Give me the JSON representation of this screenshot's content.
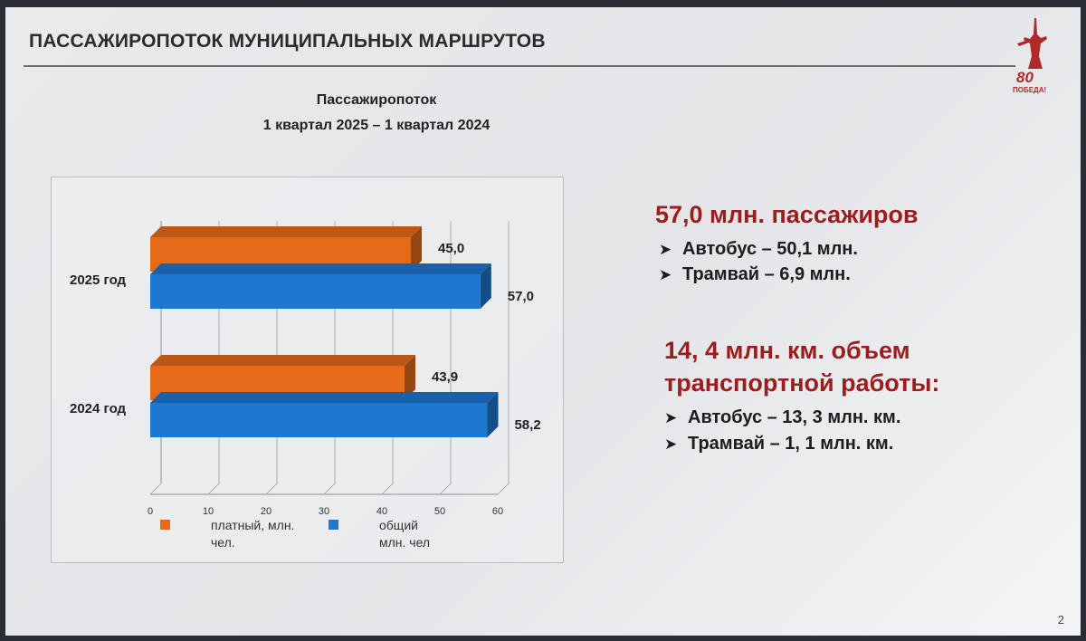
{
  "slide": {
    "title": "ПАССАЖИРОПОТОК МУНИЦИПАЛЬНЫХ МАРШРУТОВ",
    "page_number": "2",
    "logo_text": {
      "number": "80",
      "caption": "ПОБЕДА!"
    }
  },
  "chart_data": {
    "type": "bar",
    "orientation": "horizontal",
    "style": "3d",
    "title": "Пассажиропоток",
    "subtitle": "1 квартал 2025  –  1 квартал 2024",
    "categories": [
      "2025 год",
      "2024 год"
    ],
    "series": [
      {
        "name": "платный, млн. чел.",
        "values": [
          45.0,
          43.9
        ],
        "labels": [
          "45,0",
          "43,9"
        ],
        "color": "#e56b1a"
      },
      {
        "name": "общий, млн. чел",
        "values": [
          57.0,
          58.2
        ],
        "labels": [
          "57,0",
          "58,2"
        ],
        "color": "#1f78d0"
      }
    ],
    "xlim": [
      0,
      60
    ],
    "xticks": [
      0,
      10,
      20,
      30,
      40,
      50,
      60
    ],
    "grid": true,
    "legend_position": "bottom"
  },
  "stats": {
    "passengers": {
      "headline": "57,0 млн. пассажиров",
      "items": [
        "Автобус – 50,1 млн.",
        "Трамвай – 6,9 млн."
      ]
    },
    "transport_work": {
      "headline_line1": "14, 4 млн. км. объем",
      "headline_line2": "транспортной работы:",
      "items": [
        "Автобус – 13, 3 млн. км.",
        "Трамвай – 1, 1 млн. км."
      ]
    },
    "bullet_icon": "arrowhead-bullet",
    "accent_color": "#9b1d1d"
  }
}
